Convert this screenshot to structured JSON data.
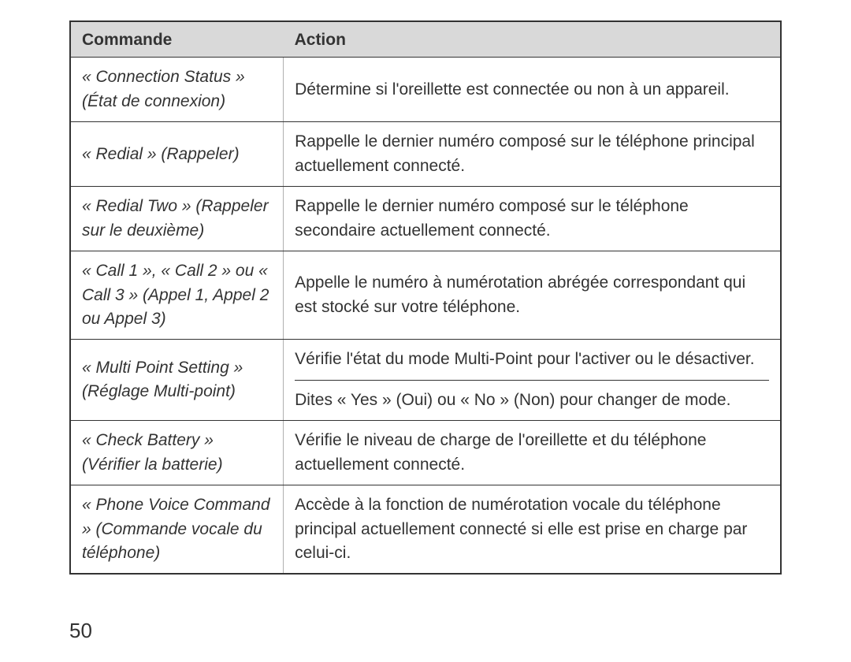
{
  "table": {
    "headers": {
      "command": "Commande",
      "action": "Action"
    },
    "rows": [
      {
        "command": "« Connection Status » (État de connexion)",
        "action": "Détermine si l'oreillette est connectée ou non à un appareil."
      },
      {
        "command": "« Redial » (Rappeler)",
        "action": "Rappelle le dernier numéro composé sur le téléphone principal actuellement connecté."
      },
      {
        "command": "« Redial Two » (Rappeler sur le deuxième)",
        "action": "Rappelle le dernier numéro composé sur le téléphone secondaire actuellement connecté."
      },
      {
        "command": "« Call 1 », « Call 2 » ou « Call 3 » (Appel 1, Appel 2 ou Appel 3)",
        "action": "Appelle le numéro à numérotation abrégée correspondant qui est stocké sur votre téléphone."
      },
      {
        "command": "« Multi Point Setting » (Réglage Multi-point)",
        "action_a": "Vérifie l'état du mode Multi-Point pour l'activer ou le désactiver.",
        "action_b": "Dites « Yes » (Oui) ou « No » (Non) pour changer de mode."
      },
      {
        "command": "« Check Battery » (Vérifier la batterie)",
        "action": "Vérifie le niveau de charge de l'oreillette et du téléphone actuellement connecté."
      },
      {
        "command": "« Phone Voice Command » (Commande vocale du téléphone)",
        "action": "Accède à la fonction de numérotation vocale du téléphone principal actuellement connecté si elle est prise en charge par celui-ci."
      }
    ]
  },
  "page_number": "50"
}
